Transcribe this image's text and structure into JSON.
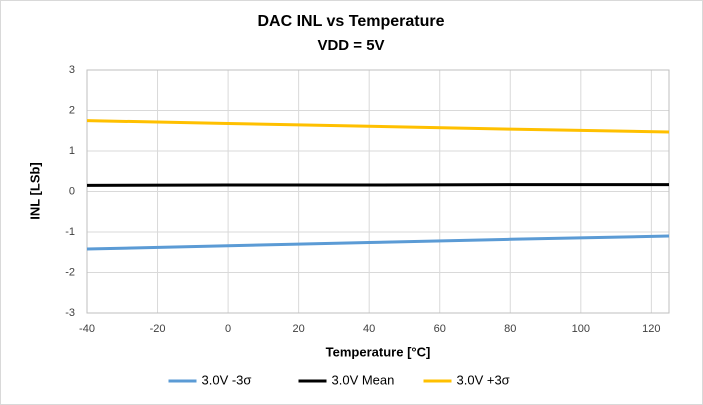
{
  "chart_data": {
    "type": "line",
    "title": "DAC INL vs Temperature",
    "subtitle": "VDD = 5V",
    "x_label": "Temperature [°C]",
    "y_label": "INL [LSb]",
    "x": [
      -40,
      0,
      40,
      80,
      125
    ],
    "series": [
      {
        "name": "3.0V -3σ",
        "color": "#5b9bd5",
        "values": [
          -1.42,
          -1.34,
          -1.26,
          -1.18,
          -1.1
        ]
      },
      {
        "name": "3.0V Mean",
        "color": "#000000",
        "values": [
          0.15,
          0.16,
          0.16,
          0.17,
          0.17
        ]
      },
      {
        "name": "3.0V +3σ",
        "color": "#ffc000",
        "values": [
          1.75,
          1.68,
          1.61,
          1.54,
          1.47
        ]
      }
    ],
    "xlim": [
      -40,
      125
    ],
    "xticks": [
      -40,
      -20,
      0,
      20,
      40,
      60,
      80,
      100,
      120
    ],
    "ylim": [
      -3,
      3
    ],
    "yticks": [
      -3,
      -2,
      -1,
      0,
      1,
      2,
      3
    ],
    "grid": true,
    "legend": "bottom"
  }
}
